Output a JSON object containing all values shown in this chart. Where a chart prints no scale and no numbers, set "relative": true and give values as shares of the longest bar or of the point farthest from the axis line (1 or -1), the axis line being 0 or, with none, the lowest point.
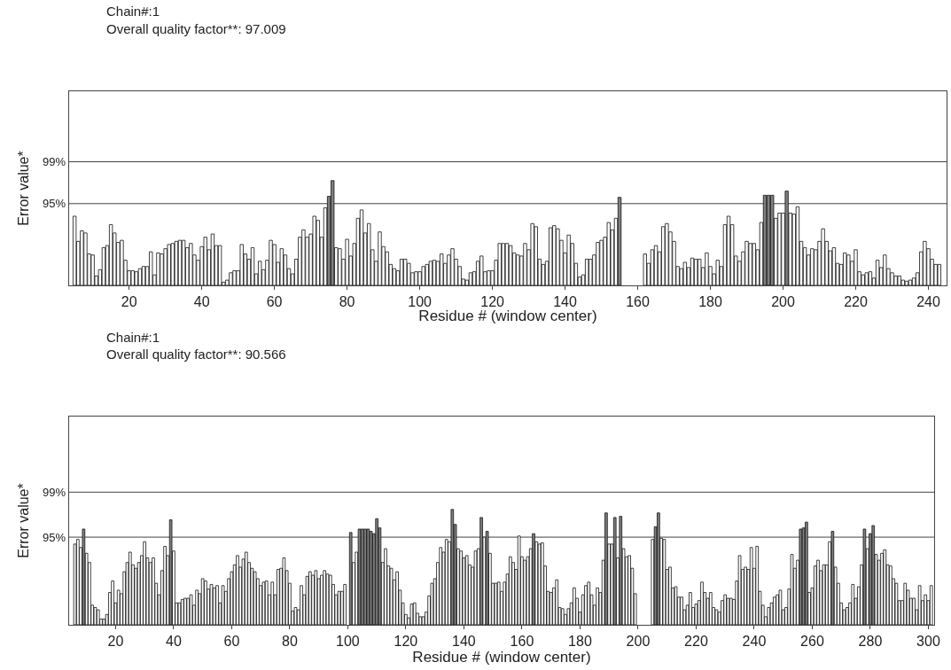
{
  "chart_data": [
    {
      "type": "bar",
      "title": "Chain#:1",
      "subtitle": "Overall quality factor**: 97.009",
      "xlabel": "Residue # (window center)",
      "ylabel": "Error value*",
      "relative": true,
      "xlim": [
        3.5,
        245
      ],
      "xticks": [
        20,
        40,
        60,
        80,
        100,
        120,
        140,
        160,
        180,
        200,
        220,
        240
      ],
      "legend": false,
      "ref_lines": [
        {
          "axis": "y",
          "value": 0.78,
          "color": "#444444"
        },
        {
          "axis": "y",
          "value": 1.18,
          "color": "#444444"
        }
      ],
      "annotations": [
        "95%",
        "99%"
      ],
      "series": [
        {
          "color": "#ffffff",
          "x": [
            5,
            6,
            7,
            8,
            9,
            10,
            11,
            12,
            13,
            14,
            15,
            16,
            17,
            18,
            19,
            20,
            21,
            22,
            23,
            24,
            25,
            26,
            27,
            28,
            29,
            30,
            31,
            32,
            33,
            34,
            35,
            36,
            37,
            38,
            39,
            40,
            41,
            42,
            43,
            44,
            45,
            46,
            47,
            48,
            49,
            50,
            51,
            52,
            53,
            54,
            55,
            56,
            57,
            58,
            59,
            60,
            61,
            62,
            63,
            64,
            65,
            66,
            67,
            68,
            69,
            70,
            71,
            72,
            73,
            74,
            77,
            78,
            79,
            80,
            81,
            82,
            83,
            84,
            85,
            86,
            87,
            88,
            89,
            90,
            91,
            92,
            93,
            94,
            95,
            96,
            97,
            98,
            99,
            100,
            101,
            102,
            103,
            104,
            105,
            106,
            107,
            108,
            109,
            110,
            111,
            112,
            113,
            114,
            115,
            116,
            117,
            118,
            119,
            120,
            121,
            122,
            123,
            124,
            125,
            126,
            127,
            128,
            129,
            130,
            131,
            132,
            133,
            134,
            135,
            136,
            137,
            138,
            139,
            140,
            141,
            142,
            143,
            144,
            145,
            146,
            147,
            148,
            149,
            150,
            151,
            152,
            153,
            154,
            162,
            163,
            164,
            165,
            166,
            167,
            168,
            169,
            170,
            171,
            172,
            173,
            174,
            175,
            176,
            177,
            178,
            179,
            180,
            181,
            182,
            183,
            184,
            185,
            186,
            187,
            188,
            189,
            190,
            191,
            192,
            193,
            194,
            198,
            199,
            200,
            202,
            203,
            204,
            205,
            206,
            207,
            208,
            209,
            210,
            211,
            212,
            213,
            214,
            215,
            216,
            217,
            218,
            219,
            220,
            221,
            222,
            223,
            224,
            225,
            226,
            227,
            228,
            229,
            230,
            231,
            232,
            233,
            234,
            235,
            236,
            237,
            238,
            239,
            240,
            241,
            242,
            243
          ],
          "values": [
            0.66,
            0.42,
            0.52,
            0.5,
            0.3,
            0.29,
            0.09,
            0.15,
            0.36,
            0.38,
            0.58,
            0.5,
            0.41,
            0.43,
            0.24,
            0.14,
            0.14,
            0.13,
            0.16,
            0.18,
            0.18,
            0.32,
            0.1,
            0.31,
            0.3,
            0.35,
            0.39,
            0.4,
            0.42,
            0.43,
            0.43,
            0.36,
            0.4,
            0.29,
            0.24,
            0.37,
            0.46,
            0.34,
            0.49,
            0.38,
            0.38,
            0.03,
            0.05,
            0.12,
            0.14,
            0.14,
            0.39,
            0.3,
            0.25,
            0.36,
            0.11,
            0.23,
            0.15,
            0.24,
            0.43,
            0.39,
            0.22,
            0.35,
            0.29,
            0.16,
            0.11,
            0.25,
            0.46,
            0.53,
            0.46,
            0.49,
            0.66,
            0.62,
            0.46,
            0.74,
            0.36,
            0.35,
            0.25,
            0.44,
            0.28,
            0.4,
            0.64,
            0.72,
            0.5,
            0.59,
            0.34,
            0.23,
            0.51,
            0.37,
            0.32,
            0.2,
            0.16,
            0.14,
            0.25,
            0.25,
            0.21,
            0.12,
            0.13,
            0.13,
            0.18,
            0.2,
            0.23,
            0.24,
            0.23,
            0.3,
            0.21,
            0.29,
            0.35,
            0.25,
            0.18,
            0.06,
            0.05,
            0.12,
            0.13,
            0.23,
            0.28,
            0.13,
            0.14,
            0.14,
            0.24,
            0.4,
            0.4,
            0.4,
            0.38,
            0.31,
            0.29,
            0.28,
            0.4,
            0.34,
            0.59,
            0.56,
            0.25,
            0.2,
            0.23,
            0.55,
            0.57,
            0.54,
            0.43,
            0.31,
            0.48,
            0.4,
            0.21,
            0.08,
            0.1,
            0.25,
            0.25,
            0.29,
            0.41,
            0.43,
            0.46,
            0.6,
            0.53,
            0.64,
            0.3,
            0.21,
            0.34,
            0.38,
            0.32,
            0.56,
            0.59,
            0.51,
            0.42,
            0.18,
            0.16,
            0.22,
            0.17,
            0.26,
            0.25,
            0.25,
            0.17,
            0.31,
            0.18,
            0.11,
            0.24,
            0.18,
            0.58,
            0.66,
            0.58,
            0.28,
            0.23,
            0.32,
            0.42,
            0.4,
            0.4,
            0.34,
            0.6,
            0.64,
            0.69,
            0.69,
            0.69,
            0.68,
            0.75,
            0.42,
            0.36,
            0.29,
            0.35,
            0.34,
            0.42,
            0.54,
            0.42,
            0.33,
            0.36,
            0.21,
            0.2,
            0.31,
            0.29,
            0.23,
            0.34,
            0.13,
            0.1,
            0.12,
            0.13,
            0.07,
            0.24,
            0.17,
            0.29,
            0.16,
            0.12,
            0.09,
            0.09,
            0.05,
            0.04,
            0.05,
            0.07,
            0.12,
            0.32,
            0.42,
            0.35,
            0.25,
            0.2,
            0.2
          ]
        },
        {
          "color": "#7f7f7f",
          "x": [
            75,
            76,
            155,
            195,
            196,
            197,
            201
          ],
          "values": [
            0.85,
            1,
            0.84,
            0.86,
            0.86,
            0.86,
            0.9
          ]
        }
      ]
    },
    {
      "type": "bar",
      "title": "Chain#:1",
      "subtitle": "Overall quality factor**: 90.566",
      "xlabel": "Residue # (window center)",
      "ylabel": "Error value*",
      "relative": true,
      "xlim": [
        4,
        302
      ],
      "xticks": [
        20,
        40,
        60,
        80,
        100,
        120,
        140,
        160,
        180,
        200,
        220,
        240,
        260,
        280,
        300
      ],
      "legend": false,
      "ref_lines": [
        {
          "axis": "y",
          "value": 0.76,
          "color": "#444444"
        },
        {
          "axis": "y",
          "value": 1.15,
          "color": "#444444"
        }
      ],
      "annotations": [
        "95%",
        "99%"
      ],
      "series": [
        {
          "color": "#ffffff",
          "x": [
            6,
            7,
            8,
            10,
            11,
            12,
            13,
            14,
            15,
            16,
            17,
            18,
            19,
            20,
            21,
            22,
            23,
            24,
            25,
            26,
            27,
            28,
            29,
            30,
            31,
            32,
            33,
            34,
            35,
            36,
            37,
            38,
            40,
            41,
            42,
            43,
            44,
            45,
            46,
            47,
            48,
            49,
            50,
            51,
            52,
            53,
            54,
            55,
            56,
            57,
            58,
            59,
            60,
            61,
            62,
            63,
            64,
            65,
            66,
            67,
            68,
            69,
            70,
            71,
            72,
            73,
            74,
            75,
            76,
            77,
            78,
            79,
            80,
            81,
            82,
            83,
            84,
            85,
            86,
            87,
            88,
            89,
            90,
            91,
            92,
            93,
            94,
            95,
            96,
            97,
            98,
            99,
            102,
            103,
            112,
            113,
            114,
            115,
            116,
            117,
            118,
            119,
            120,
            121,
            122,
            123,
            124,
            125,
            126,
            127,
            128,
            129,
            130,
            131,
            132,
            133,
            134,
            135,
            138,
            139,
            140,
            141,
            142,
            143,
            144,
            145,
            147,
            149,
            150,
            151,
            152,
            153,
            154,
            155,
            156,
            157,
            158,
            159,
            160,
            161,
            162,
            163,
            165,
            166,
            167,
            168,
            169,
            170,
            171,
            172,
            173,
            174,
            175,
            176,
            177,
            178,
            179,
            180,
            181,
            182,
            183,
            184,
            185,
            186,
            187,
            188,
            190,
            191,
            193,
            195,
            196,
            197,
            198,
            199,
            205,
            208,
            209,
            210,
            211,
            212,
            213,
            214,
            215,
            216,
            217,
            218,
            219,
            220,
            221,
            222,
            223,
            224,
            225,
            226,
            227,
            228,
            229,
            230,
            231,
            232,
            233,
            234,
            235,
            236,
            237,
            238,
            239,
            240,
            241,
            242,
            243,
            244,
            245,
            246,
            247,
            248,
            249,
            250,
            251,
            252,
            253,
            254,
            255,
            259,
            260,
            261,
            262,
            263,
            264,
            265,
            266,
            268,
            269,
            270,
            271,
            272,
            273,
            274,
            275,
            276,
            277,
            279,
            282,
            283,
            284,
            285,
            286,
            287,
            288,
            289,
            290,
            291,
            292,
            293,
            294,
            295,
            296,
            297,
            298,
            299,
            300,
            301
          ],
          "values": [
            0.7,
            0.74,
            0.67,
            0.62,
            0.54,
            0.17,
            0.15,
            0.13,
            0.05,
            0.05,
            0.09,
            0.28,
            0.38,
            0.19,
            0.3,
            0.27,
            0.46,
            0.54,
            0.63,
            0.52,
            0.49,
            0.54,
            0.6,
            0.72,
            0.58,
            0.54,
            0.58,
            0.36,
            0.26,
            0.47,
            0.68,
            0.6,
            0.64,
            0.19,
            0.19,
            0.22,
            0.23,
            0.23,
            0.26,
            0.17,
            0.3,
            0.27,
            0.4,
            0.38,
            0.31,
            0.35,
            0.32,
            0.34,
            0.19,
            0.34,
            0.29,
            0.4,
            0.46,
            0.52,
            0.6,
            0.5,
            0.57,
            0.63,
            0.54,
            0.49,
            0.46,
            0.4,
            0.34,
            0.37,
            0.38,
            0.26,
            0.37,
            0.26,
            0.48,
            0.49,
            0.58,
            0.47,
            0.36,
            0.12,
            0.15,
            0.13,
            0.34,
            0.26,
            0.42,
            0.46,
            0.43,
            0.47,
            0.4,
            0.43,
            0.47,
            0.44,
            0.43,
            0.35,
            0.26,
            0.29,
            0.29,
            0.35,
            0.54,
            0.63,
            0.54,
            0.66,
            0.51,
            0.49,
            0.39,
            0.46,
            0.3,
            0.19,
            0.09,
            0.06,
            0.18,
            0.19,
            0.1,
            0.07,
            0.07,
            0.11,
            0.25,
            0.36,
            0.4,
            0.54,
            0.67,
            0.63,
            0.74,
            0.72,
            0.66,
            0.64,
            0.58,
            0.6,
            0.52,
            0.5,
            0.64,
            0.66,
            0.76,
            0.62,
            0.36,
            0.36,
            0.37,
            0.29,
            0.37,
            0.44,
            0.59,
            0.54,
            0.48,
            0.77,
            0.59,
            0.56,
            0.59,
            0.66,
            0.72,
            0.7,
            0.71,
            0.51,
            0.29,
            0.28,
            0.32,
            0.39,
            0.15,
            0.14,
            0.09,
            0.14,
            0.19,
            0.32,
            0.23,
            0.11,
            0.26,
            0.34,
            0.37,
            0.26,
            0.17,
            0.32,
            0.28,
            0.56,
            0.7,
            0.7,
            0.58,
            0.66,
            0.59,
            0.6,
            0.49,
            0.27,
            0.74,
            0.75,
            0.74,
            0.48,
            0.5,
            0.32,
            0.33,
            0.24,
            0.24,
            0.13,
            0.17,
            0.28,
            0.15,
            0.18,
            0.21,
            0.37,
            0.28,
            0.23,
            0.28,
            0.15,
            0.13,
            0.11,
            0.21,
            0.26,
            0.23,
            0.23,
            0.22,
            0.38,
            0.6,
            0.48,
            0.5,
            0.48,
            0.67,
            0.49,
            0.68,
            0.29,
            0.17,
            0.07,
            0.15,
            0.19,
            0.24,
            0.26,
            0.3,
            0.13,
            0.15,
            0.31,
            0.61,
            0.49,
            0.56,
            0.28,
            0.32,
            0.51,
            0.56,
            0.47,
            0.52,
            0.52,
            0.72,
            0.5,
            0.36,
            0.19,
            0.13,
            0.15,
            0.19,
            0.35,
            0.23,
            0.33,
            0.52,
            0.66,
            0.61,
            0.56,
            0.62,
            0.65,
            0.52,
            0.51,
            0.4,
            0.36,
            0.21,
            0.21,
            0.36,
            0.3,
            0.23,
            0.23,
            0.13,
            0.34,
            0.21,
            0.26,
            0.21,
            0.34
          ]
        },
        {
          "color": "#7f7f7f",
          "x": [
            9,
            39,
            101,
            104,
            105,
            106,
            107,
            108,
            109,
            110,
            111,
            136,
            137,
            146,
            148,
            164,
            189,
            192,
            194,
            206,
            207,
            256,
            257,
            258,
            267,
            278,
            280,
            281
          ],
          "values": [
            0.83,
            0.91,
            0.8,
            0.83,
            0.83,
            0.83,
            0.83,
            0.81,
            0.79,
            0.92,
            0.84,
            1,
            0.87,
            0.93,
            0.81,
            0.79,
            0.97,
            0.93,
            0.94,
            0.85,
            0.97,
            0.83,
            0.84,
            0.89,
            0.81,
            0.83,
            0.79,
            0.86
          ]
        }
      ]
    }
  ]
}
